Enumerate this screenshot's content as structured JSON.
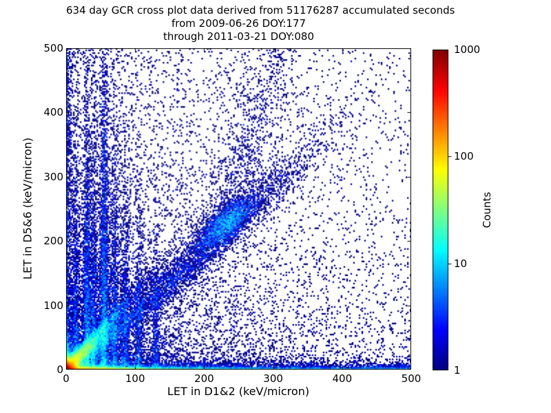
{
  "chart_data": {
    "type": "heatmap",
    "title_lines": [
      "634 day GCR cross plot data derived from 51176287 accumulated seconds",
      "from 2009-06-26 DOY:177",
      "through 2011-03-21 DOY:080"
    ],
    "xlabel": "LET in D1&2 (keV/micron)",
    "ylabel": "LET in D5&6 (keV/micron)",
    "xlim": [
      0,
      500
    ],
    "ylim": [
      0,
      500
    ],
    "xticks": [
      "0",
      "100",
      "200",
      "300",
      "400",
      "500"
    ],
    "xtick_values": [
      0,
      100,
      200,
      300,
      400,
      500
    ],
    "yticks": [
      "0",
      "100",
      "200",
      "300",
      "400",
      "500"
    ],
    "ytick_values": [
      0,
      100,
      200,
      300,
      400,
      500
    ],
    "grid": false,
    "colorbar": {
      "label": "Counts",
      "scale": "log",
      "range": [
        1,
        1000
      ],
      "tick_labels": [
        "1",
        "10",
        "100",
        "1000"
      ],
      "tick_values": [
        1,
        10,
        100,
        1000
      ],
      "colormap": "jet"
    },
    "colors": {
      "frame": "#000000",
      "text": "#000000",
      "background": "#ffffff",
      "min_count": "#000080",
      "max_count": "#800000"
    },
    "bins": [
      250,
      233
    ],
    "seed": 42,
    "density_features": {
      "origin_hotspot": {
        "amp": 1400,
        "decay": 5
      },
      "bottom_band": {
        "row_amp": 300,
        "row_xdecay": 70,
        "row_base": 12,
        "row_ydecay": 1.8,
        "skirt_amp": 40,
        "skirt_xdecay": 30,
        "skirt_base": 3,
        "skirt_ydecay": 5,
        "haze_amp": 2.2,
        "haze_ydecay": 10,
        "haze_xdecay": 250
      },
      "left_column": {
        "col_amp": 120,
        "col_ydecay": 15,
        "col_base": 2.5,
        "col_xdecay": 3,
        "halo_amp": 1.2,
        "halo_xdecay": 12,
        "halo_ydecay": 120
      },
      "vertical_streaks": {
        "x": [
          14,
          30,
          40,
          55,
          70,
          85,
          105,
          130
        ],
        "amp": [
          7,
          9,
          7,
          10,
          6,
          5,
          4,
          3
        ],
        "width": [
          2.5,
          3,
          3,
          3.5,
          3,
          3,
          3,
          3
        ],
        "ylen": [
          90,
          130,
          110,
          160,
          120,
          100,
          90,
          80
        ]
      },
      "diag_streaks": [
        {
          "slope": 1.2,
          "amp": 90,
          "width": 5,
          "rdecay": 35
        },
        {
          "slope": 0.85,
          "amp": 25,
          "width": 6,
          "rdecay": 45
        }
      ],
      "diagonal_band": {
        "offset": -15,
        "sigma": 13,
        "center": 170,
        "len": 130,
        "amp": 1.5
      },
      "cluster": {
        "x": 231,
        "y": 228,
        "sigma_along": 26,
        "sigma_perp": 11,
        "amp": 6
      },
      "plume": {
        "x0": 231,
        "y0": 228,
        "dxdy": 0.272,
        "amp_core": 0.35,
        "sigma_core": 14,
        "amp_wing": 0.12,
        "sigma_wing": 35,
        "ydecay": 300
      },
      "wedge": {
        "amp": 0.9,
        "xdecay": 75,
        "ydecay": 150
      },
      "background": {
        "base": 0.035,
        "left_amp": 0.3,
        "left_decay": 120,
        "bottom_amp": 0.3,
        "bottom_decay": 120,
        "far_decay": 400
      }
    }
  },
  "layout_labels": {
    "figure_name": "GCR cross plot"
  }
}
